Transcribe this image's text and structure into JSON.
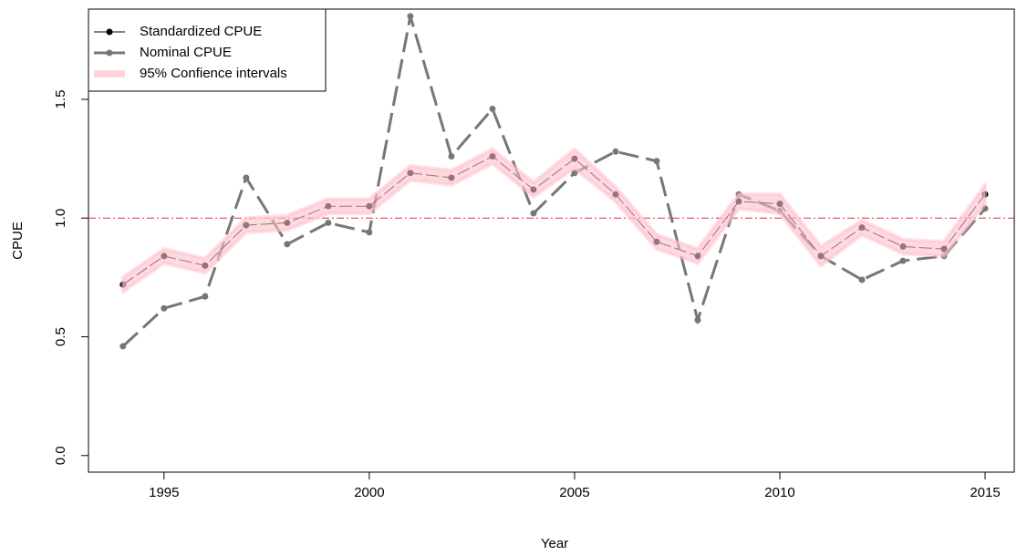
{
  "chart_data": {
    "type": "line",
    "x_label": "Year",
    "y_label": "CPUE",
    "x": [
      1994,
      1995,
      1996,
      1997,
      1998,
      1999,
      2000,
      2001,
      2002,
      2003,
      2004,
      2005,
      2006,
      2007,
      2008,
      2009,
      2010,
      2011,
      2012,
      2013,
      2014,
      2015
    ],
    "series": [
      {
        "name": "Nominal CPUE",
        "color": "#777777",
        "values": [
          0.46,
          0.62,
          0.67,
          1.17,
          0.89,
          0.98,
          0.94,
          1.85,
          1.26,
          1.46,
          1.02,
          1.19,
          1.28,
          1.24,
          0.57,
          1.1,
          1.03,
          0.84,
          0.74,
          0.82,
          0.84,
          1.04
        ]
      },
      {
        "name": "Standardized CPUE",
        "color": "#000000",
        "values": [
          0.72,
          0.84,
          0.8,
          0.97,
          0.98,
          1.05,
          1.05,
          1.19,
          1.17,
          1.26,
          1.12,
          1.25,
          1.1,
          0.9,
          0.84,
          1.07,
          1.06,
          0.84,
          0.96,
          0.88,
          0.87,
          1.1
        ]
      }
    ],
    "confidence_interval": {
      "name": "95% Confience intervals",
      "color": "#ffc0cb",
      "lower": [
        0.69,
        0.81,
        0.77,
        0.94,
        0.95,
        1.02,
        1.02,
        1.16,
        1.14,
        1.23,
        1.09,
        1.21,
        1.07,
        0.87,
        0.81,
        1.04,
        1.02,
        0.8,
        0.93,
        0.85,
        0.84,
        1.06
      ],
      "upper": [
        0.75,
        0.87,
        0.83,
        1.0,
        1.01,
        1.08,
        1.08,
        1.22,
        1.2,
        1.29,
        1.15,
        1.29,
        1.13,
        0.93,
        0.87,
        1.1,
        1.1,
        0.88,
        0.99,
        0.91,
        0.9,
        1.14
      ]
    },
    "reference_line": {
      "value": 1,
      "color": "#e03030"
    },
    "xlim": [
      1993.16,
      2015.71
    ],
    "xticks": [
      1995,
      2000,
      2005,
      2010,
      2015
    ],
    "ylim": [
      -0.07,
      1.88
    ],
    "yticks": [
      {
        "value": 0,
        "label": "0.0"
      },
      0.5,
      {
        "value": 1,
        "label": "1.0"
      },
      1.5
    ],
    "legend": "top-left"
  }
}
